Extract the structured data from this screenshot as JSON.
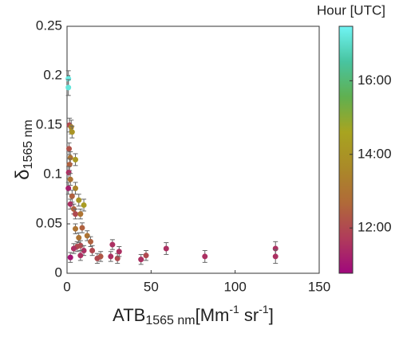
{
  "chart_data": {
    "type": "scatter",
    "x_label": {
      "main": "ATB",
      "sub": "1565 nm",
      "unit": "[Mm",
      "exp1": "-1",
      "unit2": " sr",
      "exp2": "-1",
      "close": "]"
    },
    "y_label": {
      "main": "δ",
      "sub": "1565 nm"
    },
    "colorbar_title": "Hour [UTC]",
    "x": [
      0.8,
      0.8,
      1.5,
      2.5,
      3,
      1.2,
      2,
      5,
      1.5,
      1,
      2,
      0.8,
      5,
      3,
      7,
      10,
      2,
      4,
      5,
      8,
      5,
      9,
      7,
      12,
      14,
      6,
      8,
      4,
      10,
      15,
      2,
      8,
      20,
      18,
      27,
      26,
      30,
      31,
      44,
      47,
      59,
      82,
      124,
      124
    ],
    "values": [
      0.197,
      0.188,
      0.15,
      0.148,
      0.143,
      0.126,
      0.117,
      0.115,
      0.11,
      0.102,
      0.095,
      0.086,
      0.086,
      0.078,
      0.074,
      0.069,
      0.07,
      0.065,
      0.06,
      0.06,
      0.045,
      0.046,
      0.036,
      0.038,
      0.032,
      0.027,
      0.028,
      0.025,
      0.023,
      0.023,
      0.016,
      0.018,
      0.017,
      0.015,
      0.029,
      0.017,
      0.015,
      0.022,
      0.014,
      0.018,
      0.025,
      0.017,
      0.025,
      0.017
    ],
    "errors": [
      0.008,
      0.008,
      0.007,
      0.007,
      0.006,
      0.006,
      0.006,
      0.006,
      0.006,
      0.006,
      0.006,
      0.006,
      0.006,
      0.006,
      0.006,
      0.006,
      0.005,
      0.005,
      0.005,
      0.005,
      0.005,
      0.005,
      0.005,
      0.005,
      0.005,
      0.005,
      0.005,
      0.005,
      0.005,
      0.005,
      0.005,
      0.005,
      0.005,
      0.005,
      0.005,
      0.005,
      0.005,
      0.005,
      0.005,
      0.005,
      0.006,
      0.006,
      0.007,
      0.007
    ],
    "hours": [
      17.3,
      17.2,
      12,
      13.5,
      14,
      12.2,
      13,
      14.2,
      12.5,
      11.5,
      13,
      11.2,
      13.5,
      12.5,
      14,
      14.3,
      11.5,
      12.5,
      12,
      13,
      13,
      12.5,
      13,
      13,
      12.5,
      12,
      12,
      11.5,
      11.5,
      12,
      11,
      11.5,
      12.3,
      12,
      11.5,
      11.5,
      12,
      11.5,
      11.5,
      12,
      11.5,
      11.5,
      11.5,
      11.5
    ],
    "xlim": [
      0,
      150
    ],
    "xticks": [
      0,
      50,
      100,
      150
    ],
    "ylim": [
      0,
      0.25
    ],
    "yticks": [
      0,
      0.05,
      0.1,
      0.15,
      0.2,
      0.25
    ],
    "clim": [
      10.77,
      17.48
    ],
    "cticks": [
      {
        "value": 12,
        "label": "12:00"
      },
      {
        "value": 14,
        "label": "14:00"
      },
      {
        "value": 16,
        "label": "16:00"
      }
    ],
    "colormap": [
      "#a0087c",
      "#b03c5a",
      "#b06a38",
      "#aa8a28",
      "#a8a420",
      "#60b050",
      "#48c4a0",
      "#70f4f4"
    ],
    "errorbar_color": "#666"
  }
}
